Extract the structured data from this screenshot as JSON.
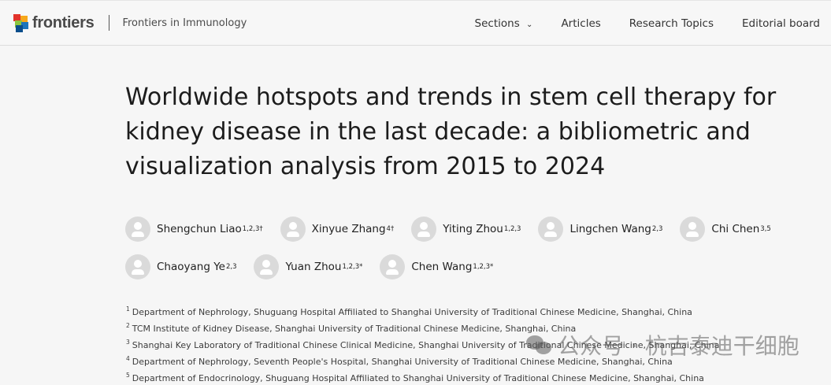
{
  "header": {
    "logo_text": "frontiers",
    "journal": "Frontiers in Immunology",
    "nav": [
      "Sections",
      "Articles",
      "Research Topics",
      "Editorial board"
    ]
  },
  "article": {
    "title": "Worldwide hotspots and trends in stem cell therapy for kidney disease in the last decade: a bibliometric and visualization analysis from 2015 to 2024",
    "authors": [
      {
        "name": "Shengchun Liao",
        "sup": "1,2,3†"
      },
      {
        "name": "Xinyue Zhang",
        "sup": "4†"
      },
      {
        "name": "Yiting Zhou",
        "sup": "1,2,3"
      },
      {
        "name": "Lingchen Wang",
        "sup": "2,3"
      },
      {
        "name": "Chi Chen",
        "sup": "3,5"
      },
      {
        "name": "Chaoyang Ye",
        "sup": "2,3"
      },
      {
        "name": "Yuan Zhou",
        "sup": "1,2,3*"
      },
      {
        "name": "Chen Wang",
        "sup": "1,2,3*"
      }
    ],
    "affiliations": [
      {
        "n": "1",
        "text": "Department of Nephrology, Shuguang Hospital Affiliated to Shanghai University of Traditional Chinese Medicine, Shanghai, China"
      },
      {
        "n": "2",
        "text": "TCM Institute of Kidney Disease, Shanghai University of Traditional Chinese Medicine, Shanghai, China"
      },
      {
        "n": "3",
        "text": "Shanghai Key Laboratory of Traditional Chinese Clinical Medicine, Shanghai University of Traditional Chinese Medicine, Shanghai, China"
      },
      {
        "n": "4",
        "text": "Department of Nephrology, Seventh People's Hospital, Shanghai University of Traditional Chinese Medicine, Shanghai, China"
      },
      {
        "n": "5",
        "text": "Department of Endocrinology, Shuguang Hospital Affiliated to Shanghai University of Traditional Chinese Medicine, Shanghai, China"
      }
    ]
  },
  "watermark": "公众号 · 杭吉泰迪干细胞"
}
